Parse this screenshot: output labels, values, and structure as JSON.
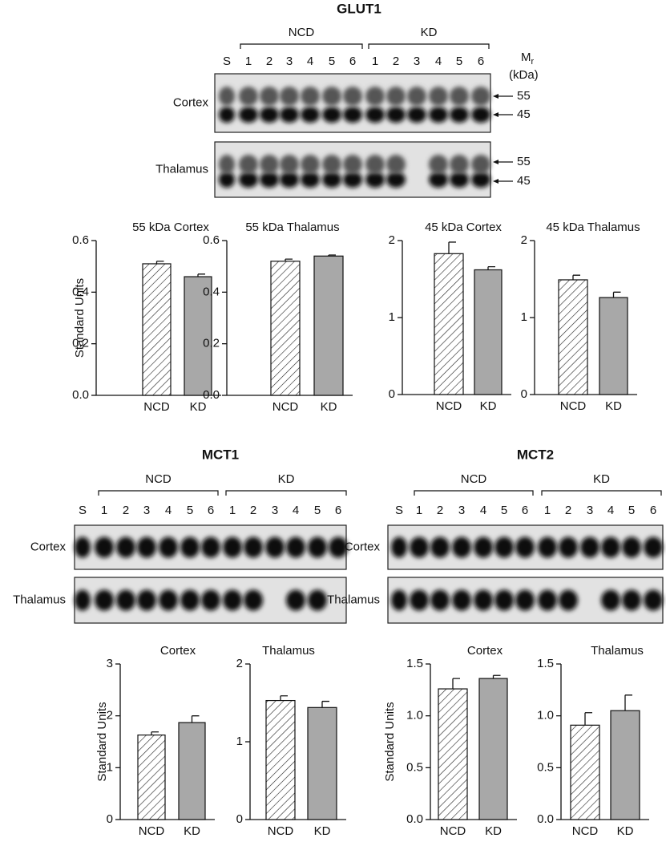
{
  "blots": [
    {
      "title": "GLUT1",
      "groups": [
        "NCD",
        "KD"
      ],
      "lanes": [
        "S",
        "1",
        "2",
        "3",
        "4",
        "5",
        "6",
        "1",
        "2",
        "3",
        "4",
        "5",
        "6"
      ],
      "rows": [
        "Cortex",
        "Thalamus"
      ],
      "mr": "M",
      "mr_sub": "r",
      "mr_unit": "(kDa)",
      "markers": [
        "55",
        "45"
      ]
    },
    {
      "title": "MCT1",
      "groups": [
        "NCD",
        "KD"
      ],
      "lanes": [
        "S",
        "1",
        "2",
        "3",
        "4",
        "5",
        "6",
        "1",
        "2",
        "3",
        "4",
        "5",
        "6"
      ],
      "rows": [
        "Cortex",
        "Thalamus"
      ]
    },
    {
      "title": "MCT2",
      "groups": [
        "NCD",
        "KD"
      ],
      "lanes": [
        "S",
        "1",
        "2",
        "3",
        "4",
        "5",
        "6",
        "1",
        "2",
        "3",
        "4",
        "5",
        "6"
      ],
      "rows": [
        "Cortex",
        "Thalamus"
      ]
    }
  ],
  "chart_data": [
    {
      "type": "bar",
      "title": "55 kDa Cortex",
      "ylabel": "Standard Units",
      "categories": [
        "NCD",
        "KD"
      ],
      "values": [
        0.51,
        0.46
      ],
      "errors": [
        0.01,
        0.01
      ],
      "colors": [
        "#ffffff",
        "#a8a8a8"
      ],
      "hatch": [
        true,
        false
      ],
      "ylim": [
        0,
        0.6
      ],
      "yticks": [
        {
          "value": 0,
          "label": "0.0"
        },
        0.2,
        0.4,
        0.6
      ]
    },
    {
      "type": "bar",
      "title": "55 kDa Thalamus",
      "categories": [
        "NCD",
        "KD"
      ],
      "values": [
        0.52,
        0.54
      ],
      "errors": [
        0.008,
        0.004
      ],
      "colors": [
        "#ffffff",
        "#a8a8a8"
      ],
      "hatch": [
        true,
        false
      ],
      "ylim": [
        0,
        0.6
      ],
      "yticks": [
        {
          "value": 0,
          "label": "0.0"
        },
        0.2,
        0.4,
        0.6
      ]
    },
    {
      "type": "bar",
      "title": "45 kDa Cortex",
      "categories": [
        "NCD",
        "KD"
      ],
      "values": [
        1.83,
        1.62
      ],
      "errors": [
        0.15,
        0.04
      ],
      "colors": [
        "#ffffff",
        "#a8a8a8"
      ],
      "hatch": [
        true,
        false
      ],
      "ylim": [
        0,
        2
      ],
      "yticks": [
        0,
        1,
        2
      ]
    },
    {
      "type": "bar",
      "title": "45 kDa Thalamus",
      "categories": [
        "NCD",
        "KD"
      ],
      "values": [
        1.49,
        1.26
      ],
      "errors": [
        0.06,
        0.07
      ],
      "colors": [
        "#ffffff",
        "#a8a8a8"
      ],
      "hatch": [
        true,
        false
      ],
      "ylim": [
        0,
        2
      ],
      "yticks": [
        0,
        1,
        2
      ]
    },
    {
      "type": "bar",
      "title": "Cortex",
      "ylabel": "Standard Units",
      "categories": [
        "NCD",
        "KD"
      ],
      "values": [
        1.63,
        1.87
      ],
      "errors": [
        0.06,
        0.13
      ],
      "colors": [
        "#ffffff",
        "#a8a8a8"
      ],
      "hatch": [
        true,
        false
      ],
      "ylim": [
        0,
        3
      ],
      "yticks": [
        0,
        1,
        2,
        3
      ]
    },
    {
      "type": "bar",
      "title": "Thalamus",
      "categories": [
        "NCD",
        "KD"
      ],
      "values": [
        1.53,
        1.44
      ],
      "errors": [
        0.06,
        0.08
      ],
      "colors": [
        "#ffffff",
        "#a8a8a8"
      ],
      "hatch": [
        true,
        false
      ],
      "ylim": [
        0,
        2
      ],
      "yticks": [
        0,
        1,
        2
      ]
    },
    {
      "type": "bar",
      "title": "Cortex",
      "ylabel": "Standard Units",
      "categories": [
        "NCD",
        "KD"
      ],
      "values": [
        1.26,
        1.36
      ],
      "errors": [
        0.1,
        0.03
      ],
      "colors": [
        "#ffffff",
        "#a8a8a8"
      ],
      "hatch": [
        true,
        false
      ],
      "ylim": [
        0,
        1.5
      ],
      "yticks": [
        {
          "value": 0,
          "label": "0.0"
        },
        {
          "value": 0.5,
          "label": "0.5"
        },
        {
          "value": 1,
          "label": "1.0"
        },
        {
          "value": 1.5,
          "label": "1.5"
        }
      ]
    },
    {
      "type": "bar",
      "title": "Thalamus",
      "categories": [
        "NCD",
        "KD"
      ],
      "values": [
        0.91,
        1.05
      ],
      "errors": [
        0.12,
        0.15
      ],
      "colors": [
        "#ffffff",
        "#a8a8a8"
      ],
      "hatch": [
        true,
        false
      ],
      "ylim": [
        0,
        1.5
      ],
      "yticks": [
        {
          "value": 0,
          "label": "0.0"
        },
        {
          "value": 0.5,
          "label": "0.5"
        },
        {
          "value": 1,
          "label": "1.0"
        },
        {
          "value": 1.5,
          "label": "1.5"
        }
      ]
    }
  ]
}
